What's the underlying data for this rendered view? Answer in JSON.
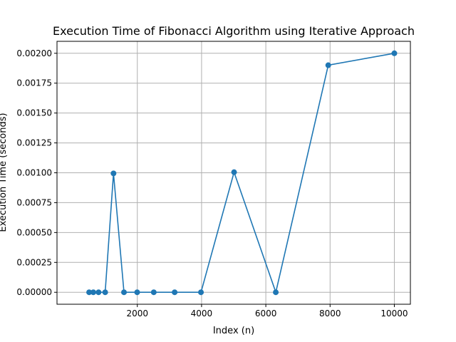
{
  "chart_data": {
    "type": "line",
    "title": "Execution Time of Fibonacci Algorithm using Iterative Approach",
    "xlabel": "Index (n)",
    "ylabel": "Execution Time (seconds)",
    "xlim": [
      -500,
      10500
    ],
    "ylim": [
      -0.0001,
      0.0021
    ],
    "x_ticks": [
      2000,
      4000,
      6000,
      8000,
      10000
    ],
    "y_ticks": [
      0.0,
      0.00025,
      0.0005,
      0.00075,
      0.001,
      0.00125,
      0.0015,
      0.00175,
      0.002
    ],
    "x_tick_labels": [
      "2000",
      "4000",
      "6000",
      "8000",
      "10000"
    ],
    "y_tick_labels": [
      "0.00000",
      "0.00025",
      "0.00050",
      "0.00075",
      "0.00100",
      "0.00125",
      "0.00150",
      "0.00175",
      "0.00200"
    ],
    "grid": true,
    "color": "#1f77b4",
    "series": [
      {
        "x": [
          500,
          631,
          794,
          1000,
          1259,
          1585,
          1995,
          2512,
          3162,
          3981,
          5012,
          6310,
          7943,
          10000
        ],
        "y": [
          0.0,
          0.0,
          0.0,
          0.0,
          0.000995,
          0.0,
          0.0,
          0.0,
          0.0,
          0.0,
          0.001005,
          0.0,
          0.0019,
          0.002
        ]
      }
    ]
  }
}
